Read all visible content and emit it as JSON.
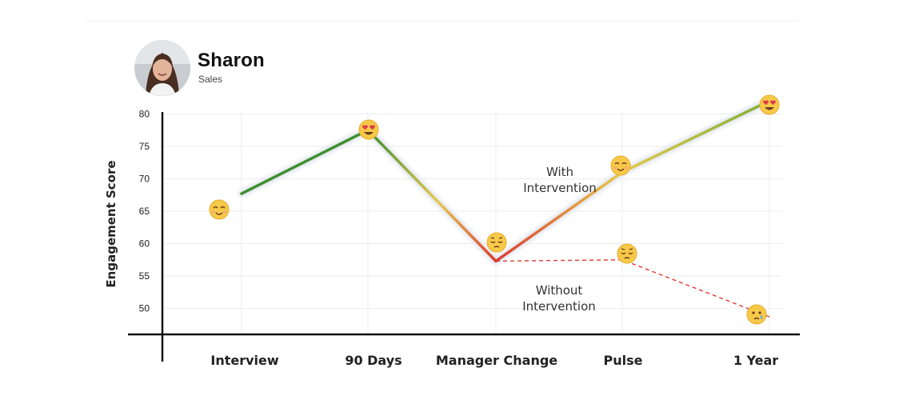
{
  "profile": {
    "name": "Sharon",
    "department": "Sales"
  },
  "chart_data": {
    "type": "line",
    "title": "",
    "xlabel": "",
    "ylabel": "Engagement Score",
    "categories": [
      "Interview",
      "90 Days",
      "Manager Change",
      "Pulse",
      "1 Year"
    ],
    "yticks": [
      50,
      55,
      60,
      65,
      70,
      75,
      80
    ],
    "ylim": [
      46,
      83
    ],
    "grid": true,
    "series": [
      {
        "name": "With Intervention",
        "style": "solid-gradient",
        "values": [
          67.7,
          77.5,
          57.3,
          71.0,
          82.0
        ],
        "emoji": [
          "smiling-face-icon",
          "heart-eyes-face-icon",
          "pensive-face-icon",
          "smiling-face-icon",
          "heart-eyes-face-icon"
        ]
      },
      {
        "name": "Without Intervention",
        "style": "dashed",
        "color": "#dd3b32",
        "values": [
          null,
          null,
          57.3,
          57.5,
          48.7
        ],
        "emoji": [
          null,
          null,
          null,
          "pensive-face-icon",
          "crying-face-icon"
        ]
      }
    ],
    "annotations": [
      {
        "line1": "With",
        "line2": "Intervention"
      },
      {
        "line1": "Without",
        "line2": "Intervention"
      }
    ],
    "colors": {
      "green": "#3f8f2f",
      "yellow": "#e6c94a",
      "red": "#dd3b32"
    }
  }
}
